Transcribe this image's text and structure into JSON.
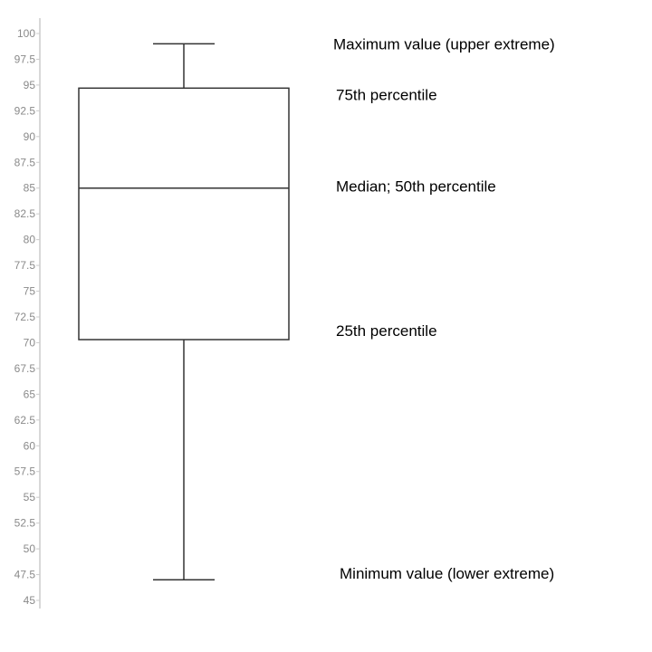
{
  "chart_data": {
    "type": "box",
    "title": "",
    "xlabel": "",
    "ylabel": "",
    "ylim": [
      45,
      100
    ],
    "y_ticks": [
      "45",
      "47.5",
      "50",
      "52.5",
      "55",
      "57.5",
      "60",
      "62.5",
      "65",
      "67.5",
      "70",
      "72.5",
      "75",
      "77.5",
      "80",
      "82.5",
      "85",
      "87.5",
      "90",
      "92.5",
      "95",
      "97.5",
      "100"
    ],
    "grid": false,
    "box": {
      "min": 47,
      "q1": 70.3,
      "median": 85,
      "q3": 94.7,
      "max": 99
    },
    "annotations": [
      {
        "key": "max",
        "text": "Maximum value (upper extreme)"
      },
      {
        "key": "q3",
        "text": "75th percentile"
      },
      {
        "key": "median",
        "text": "Median; 50th percentile"
      },
      {
        "key": "q1",
        "text": "25th percentile"
      },
      {
        "key": "min",
        "text": "Minimum value (lower extreme)"
      }
    ],
    "colors": {
      "box_stroke": "#333333",
      "axis": "#cccccc",
      "tick_label": "#8a8a8a"
    }
  }
}
